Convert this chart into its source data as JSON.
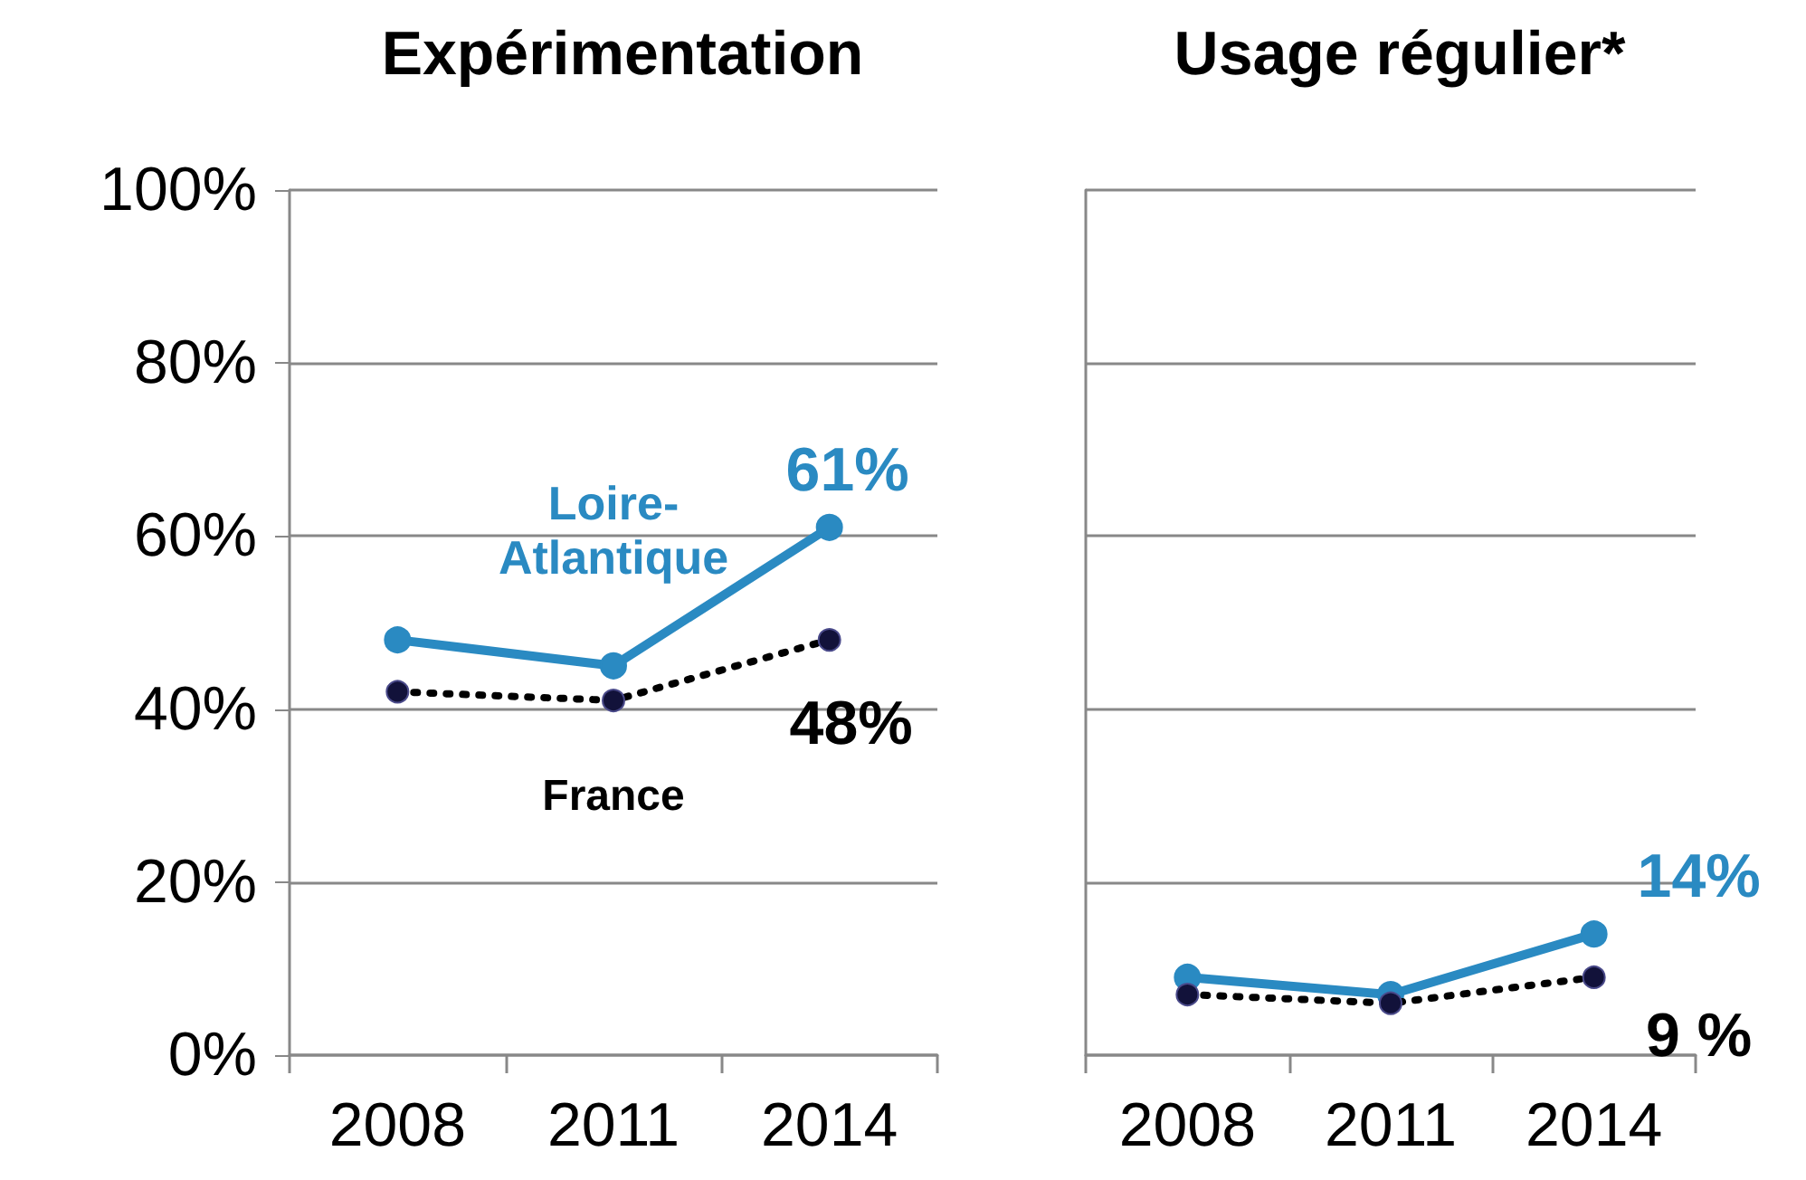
{
  "chart_data": [
    {
      "type": "line",
      "title": "Expérimentation",
      "categories": [
        "2008",
        "2011",
        "2014"
      ],
      "series": [
        {
          "name": "Loire-Atlantique",
          "color": "#2a8ac2",
          "values": [
            48,
            45,
            61
          ],
          "value_labels": [
            null,
            null,
            "61%"
          ],
          "line_style": "solid"
        },
        {
          "name": "France",
          "color": "#000000",
          "values": [
            42,
            41,
            48
          ],
          "value_labels": [
            null,
            null,
            "48%"
          ],
          "line_style": "dotted"
        }
      ],
      "ylim": [
        0,
        100
      ],
      "yticks": [
        {
          "value": 0,
          "label": "0%"
        },
        {
          "value": 20,
          "label": "20%"
        },
        {
          "value": 40,
          "label": "40%"
        },
        {
          "value": 60,
          "label": "60%"
        },
        {
          "value": 80,
          "label": "80%"
        },
        {
          "value": 100,
          "label": "100%"
        }
      ],
      "grid": "y",
      "legend": false,
      "marker": "circle"
    },
    {
      "type": "line",
      "title": "Usage régulier*",
      "categories": [
        "2008",
        "2011",
        "2014"
      ],
      "series": [
        {
          "color": "#2a8ac2",
          "values": [
            9,
            7,
            14
          ],
          "value_labels": [
            null,
            null,
            "14%"
          ],
          "line_style": "solid"
        },
        {
          "color": "#000000",
          "values": [
            7,
            6,
            9
          ],
          "value_labels": [
            null,
            null,
            "9 %"
          ],
          "line_style": "dotted"
        }
      ],
      "ylim": [
        0,
        100
      ],
      "yticks": [
        {
          "value": 0,
          "label": null
        },
        {
          "value": 20,
          "label": null
        },
        {
          "value": 40,
          "label": null
        },
        {
          "value": 60,
          "label": null
        },
        {
          "value": 80,
          "label": null
        },
        {
          "value": 100,
          "label": null
        }
      ],
      "grid": "y",
      "legend": false,
      "marker": "circle",
      "tick_labels": "x"
    }
  ]
}
